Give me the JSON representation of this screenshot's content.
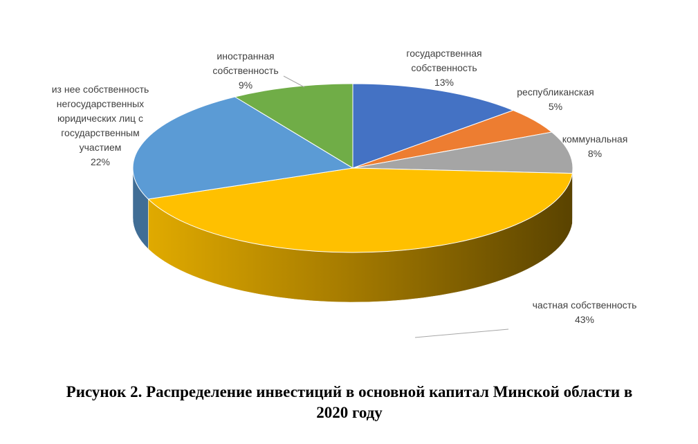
{
  "chart_data": {
    "type": "pie",
    "title": "Рисунок 2. Распределение инвестиций в основной капитал Минской области в 2020 году",
    "categories": [
      "государственная\nсобственность",
      "республиканская",
      "коммунальная",
      "частная собственность",
      "из нее собственность\nнегосударственных\nюридических лиц с\nгосударственным\nучастием",
      "иностранная\nсобственность"
    ],
    "values": [
      13,
      5,
      8,
      43,
      22,
      9
    ],
    "value_labels": [
      "13%",
      "5%",
      "8%",
      "43%",
      "22%",
      "9%"
    ],
    "colors": [
      "#4472c4",
      "#ed7d31",
      "#a5a5a5",
      "#ffc000",
      "#5b9bd5",
      "#70ad47"
    ]
  }
}
